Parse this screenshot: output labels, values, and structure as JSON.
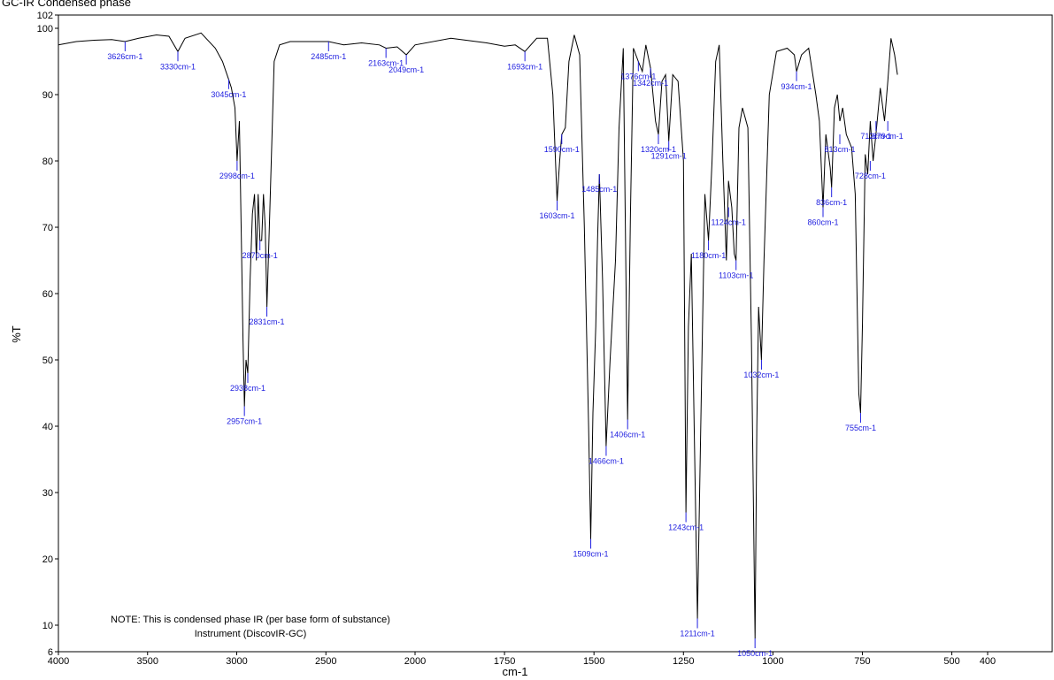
{
  "chart_data": {
    "type": "line",
    "title": "GC-IR Condensed phase",
    "xlabel": "cm-1",
    "ylabel": "%T",
    "xlim": [
      4000,
      400
    ],
    "ylim": [
      6,
      102
    ],
    "x_ticks": [
      4000,
      3500,
      3000,
      2500,
      2000,
      1750,
      1500,
      1250,
      1000,
      750,
      500,
      400
    ],
    "x_tick_labels": [
      "4000",
      "3500",
      "3000",
      "2500",
      "2000",
      "1750",
      "1500",
      "1250",
      "1000",
      "750",
      "500",
      "400"
    ],
    "y_ticks": [
      6,
      10,
      20,
      30,
      40,
      50,
      60,
      70,
      80,
      90,
      100,
      102
    ],
    "y_tick_labels": [
      "6",
      "10",
      "20",
      "30",
      "40",
      "50",
      "60",
      "70",
      "80",
      "90",
      "100",
      "102"
    ],
    "grid": false,
    "series": [
      {
        "color": "#000000",
        "x": [
          4000,
          3900,
          3800,
          3700,
          3626,
          3550,
          3450,
          3380,
          3330,
          3290,
          3200,
          3120,
          3080,
          3045,
          3030,
          3010,
          2998,
          2985,
          2975,
          2965,
          2957,
          2948,
          2938,
          2925,
          2912,
          2900,
          2890,
          2880,
          2870,
          2860,
          2850,
          2840,
          2831,
          2815,
          2790,
          2760,
          2700,
          2600,
          2485,
          2400,
          2300,
          2200,
          2163,
          2100,
          2049,
          2000,
          1900,
          1800,
          1750,
          1720,
          1693,
          1660,
          1630,
          1615,
          1603,
          1596,
          1590,
          1580,
          1570,
          1555,
          1540,
          1527,
          1515,
          1509,
          1503,
          1495,
          1490,
          1485,
          1476,
          1466,
          1455,
          1440,
          1430,
          1418,
          1406,
          1398,
          1390,
          1376,
          1365,
          1355,
          1342,
          1335,
          1328,
          1320,
          1310,
          1300,
          1291,
          1280,
          1265,
          1250,
          1243,
          1236,
          1228,
          1220,
          1211,
          1200,
          1190,
          1180,
          1170,
          1160,
          1150,
          1140,
          1130,
          1124,
          1115,
          1108,
          1103,
          1095,
          1085,
          1070,
          1060,
          1050,
          1045,
          1040,
          1032,
          1025,
          1010,
          990,
          960,
          940,
          934,
          920,
          900,
          880,
          870,
          860,
          852,
          840,
          836,
          828,
          820,
          813,
          805,
          795,
          780,
          770,
          760,
          755,
          750,
          742,
          735,
          728,
          720,
          712,
          700,
          688,
          679,
          670,
          660,
          652
        ],
        "y": [
          97.5,
          98,
          98.2,
          98.3,
          98,
          98.5,
          99,
          98.8,
          96.5,
          98.5,
          99.3,
          97,
          95,
          92.3,
          91,
          88,
          80,
          86,
          70,
          53,
          43,
          50,
          48,
          62,
          72,
          75,
          65,
          75,
          68,
          68,
          75,
          70,
          58,
          72,
          95,
          97.5,
          98,
          98,
          98,
          97.5,
          97.8,
          97.5,
          97,
          97.2,
          96,
          97.5,
          98.5,
          97.8,
          97.3,
          97.5,
          96.5,
          98.5,
          98.5,
          90,
          74,
          80,
          84,
          85,
          95,
          99,
          96,
          70,
          40,
          23,
          42,
          55,
          68,
          78,
          62,
          37,
          50,
          65,
          85,
          97,
          41,
          72,
          97,
          95,
          93.5,
          97.5,
          94,
          90,
          86,
          84,
          92,
          93,
          83,
          93,
          92,
          80,
          27,
          55,
          66,
          40,
          11,
          45,
          75,
          68,
          80,
          95,
          97.5,
          80,
          65,
          77,
          73,
          66,
          65,
          85,
          88,
          85,
          53,
          8,
          40,
          58,
          50,
          65,
          90,
          96.5,
          97,
          96,
          93.5,
          96,
          97,
          90,
          86,
          73,
          84,
          79,
          76,
          88,
          90,
          86,
          88,
          84,
          82,
          75,
          45,
          42,
          55,
          81,
          78,
          86,
          80,
          84,
          91,
          86,
          92,
          98.5,
          96,
          93
        ]
      }
    ],
    "peak_labels": [
      {
        "x": 3626,
        "y": 98,
        "label": "3626cm-1"
      },
      {
        "x": 3330,
        "y": 96.5,
        "label": "3330cm-1"
      },
      {
        "x": 3045,
        "y": 92.3,
        "label": "3045cm-1"
      },
      {
        "x": 2998,
        "y": 80,
        "label": "2998cm-1"
      },
      {
        "x": 2870,
        "y": 68,
        "label": "2870cm-1"
      },
      {
        "x": 2831,
        "y": 58,
        "label": "2831cm-1"
      },
      {
        "x": 2938,
        "y": 48,
        "label": "2938cm-1"
      },
      {
        "x": 2957,
        "y": 43,
        "label": "2957cm-1"
      },
      {
        "x": 2485,
        "y": 98,
        "label": "2485cm-1"
      },
      {
        "x": 2163,
        "y": 97,
        "label": "2163cm-1"
      },
      {
        "x": 2049,
        "y": 96,
        "label": "2049cm-1"
      },
      {
        "x": 1693,
        "y": 96.5,
        "label": "1693cm-1"
      },
      {
        "x": 1590,
        "y": 84,
        "label": "1590cm-1"
      },
      {
        "x": 1603,
        "y": 74,
        "label": "1603cm-1"
      },
      {
        "x": 1376,
        "y": 95,
        "label": "1376cm-1"
      },
      {
        "x": 1342,
        "y": 94,
        "label": "1342cm-1"
      },
      {
        "x": 1291,
        "y": 83,
        "label": "1291cm-1"
      },
      {
        "x": 1320,
        "y": 84,
        "label": "1320cm-1"
      },
      {
        "x": 1485,
        "y": 78,
        "label": "1485cm-1"
      },
      {
        "x": 1406,
        "y": 41,
        "label": "1406cm-1"
      },
      {
        "x": 1466,
        "y": 37,
        "label": "1466cm-1"
      },
      {
        "x": 1509,
        "y": 23,
        "label": "1509cm-1"
      },
      {
        "x": 1243,
        "y": 27,
        "label": "1243cm-1"
      },
      {
        "x": 1211,
        "y": 11,
        "label": "1211cm-1"
      },
      {
        "x": 1180,
        "y": 68,
        "label": "1180cm-1"
      },
      {
        "x": 1124,
        "y": 73,
        "label": "1124cm-1"
      },
      {
        "x": 1103,
        "y": 65,
        "label": "1103cm-1"
      },
      {
        "x": 1032,
        "y": 50,
        "label": "1032cm-1"
      },
      {
        "x": 1050,
        "y": 8,
        "label": "1050cm-1"
      },
      {
        "x": 934,
        "y": 93.5,
        "label": "934cm-1"
      },
      {
        "x": 813,
        "y": 84,
        "label": "813cm-1"
      },
      {
        "x": 712,
        "y": 86,
        "label": "712cm-1"
      },
      {
        "x": 679,
        "y": 86,
        "label": "679cm-1"
      },
      {
        "x": 836,
        "y": 76,
        "label": "836cm-1"
      },
      {
        "x": 728,
        "y": 80,
        "label": "728cm-1"
      },
      {
        "x": 860,
        "y": 73,
        "label": "860cm-1"
      },
      {
        "x": 755,
        "y": 42,
        "label": "755cm-1"
      }
    ],
    "annotations": [
      "NOTE: This is condensed phase IR (per base form of substance)",
      "Instrument (DiscovIR-GC)"
    ]
  }
}
